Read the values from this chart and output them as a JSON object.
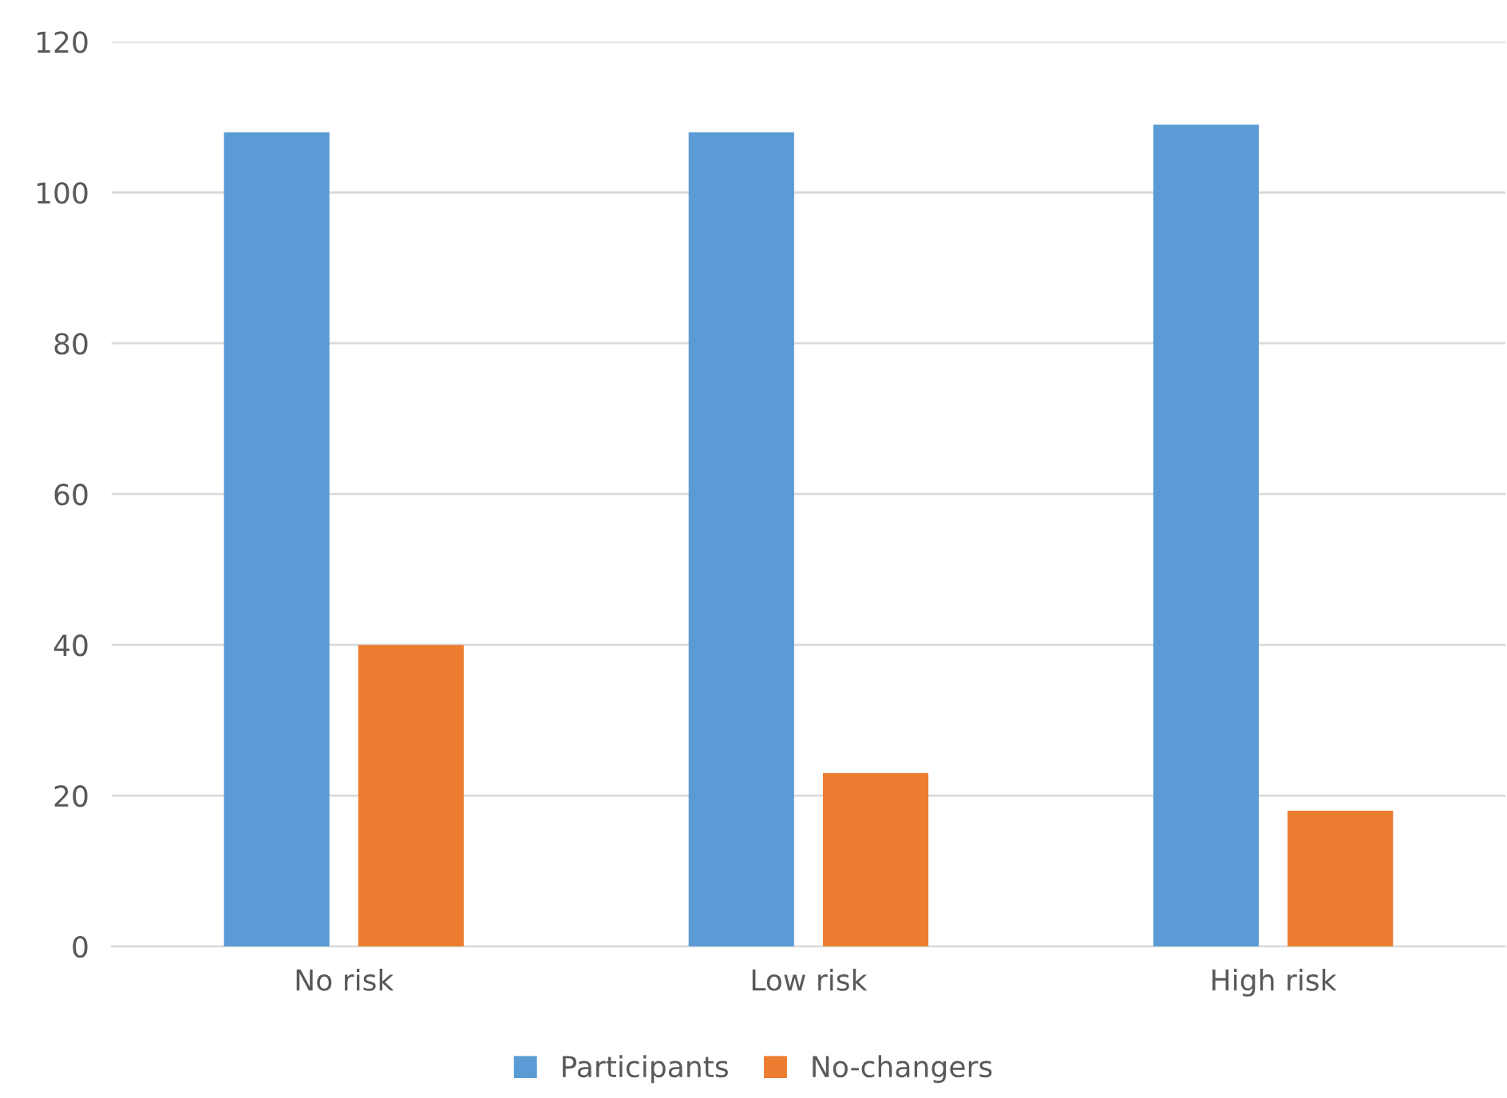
{
  "chart_data": {
    "type": "bar",
    "categories": [
      "No risk",
      "Low risk",
      "High risk"
    ],
    "series": [
      {
        "name": "Participants",
        "color": "#5b9bd5",
        "values": [
          108,
          108,
          109
        ]
      },
      {
        "name": "No-changers",
        "color": "#ed7d31",
        "values": [
          40,
          23,
          18
        ]
      }
    ],
    "ylim": [
      0,
      120
    ],
    "yticks": [
      0,
      20,
      40,
      60,
      80,
      100,
      120
    ],
    "grid": "y",
    "legend": "bottom"
  }
}
